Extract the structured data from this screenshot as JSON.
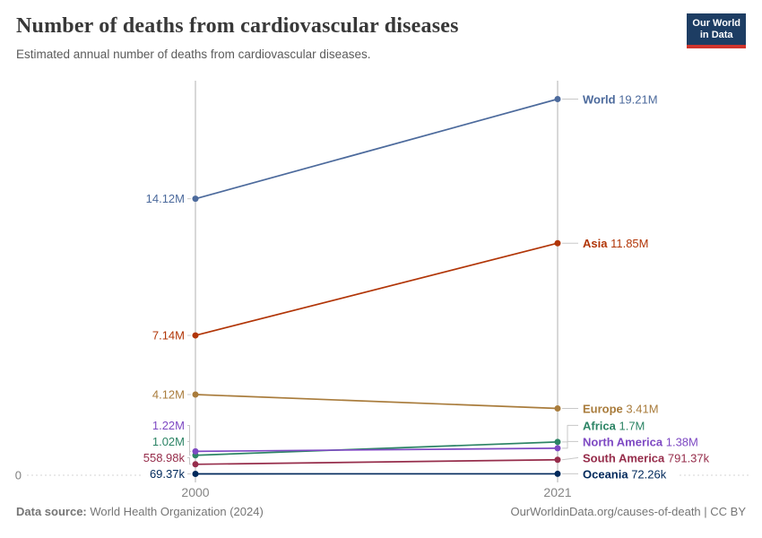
{
  "header": {
    "title": "Number of deaths from cardiovascular diseases",
    "subtitle": "Estimated annual number of deaths from cardiovascular diseases.",
    "logo": {
      "line1": "Our World",
      "line2": "in Data",
      "bg_color": "#1d3d63",
      "accent_color": "#d0342c"
    }
  },
  "chart_data": {
    "type": "line",
    "subtype": "slope",
    "title": "Number of deaths from cardiovascular diseases",
    "x": [
      2000,
      2021
    ],
    "x_tick_labels": [
      "2000",
      "2021"
    ],
    "ylim": [
      0,
      19210000
    ],
    "zero_label": "0",
    "grid": "zero-line-only",
    "legend_position": "end-of-line-labels",
    "series": [
      {
        "name": "World",
        "values": [
          14120000,
          19210000
        ],
        "labels": [
          "14.12M",
          "19.21M"
        ],
        "color": "#4C6A9C"
      },
      {
        "name": "Asia",
        "values": [
          7140000,
          11850000
        ],
        "labels": [
          "7.14M",
          "11.85M"
        ],
        "color": "#B13507"
      },
      {
        "name": "Europe",
        "values": [
          4120000,
          3410000
        ],
        "labels": [
          "4.12M",
          "3.41M"
        ],
        "color": "#A97C3C"
      },
      {
        "name": "Africa",
        "values": [
          1020000,
          1700000
        ],
        "labels": [
          "1.02M",
          "1.7M"
        ],
        "color": "#2C8465"
      },
      {
        "name": "North America",
        "values": [
          1220000,
          1380000
        ],
        "labels": [
          "1.22M",
          "1.38M"
        ],
        "color": "#7E49C3"
      },
      {
        "name": "South America",
        "values": [
          558980,
          791370
        ],
        "labels": [
          "558.98k",
          "791.37k"
        ],
        "color": "#962D4B"
      },
      {
        "name": "Oceania",
        "values": [
          69370,
          72260
        ],
        "labels": [
          "69.37k",
          "72.26k"
        ],
        "color": "#00295B"
      }
    ]
  },
  "footer": {
    "source_label": "Data source:",
    "source_text": " World Health Organization (2024)",
    "license_text": "OurWorldinData.org/causes-of-death | CC BY"
  }
}
